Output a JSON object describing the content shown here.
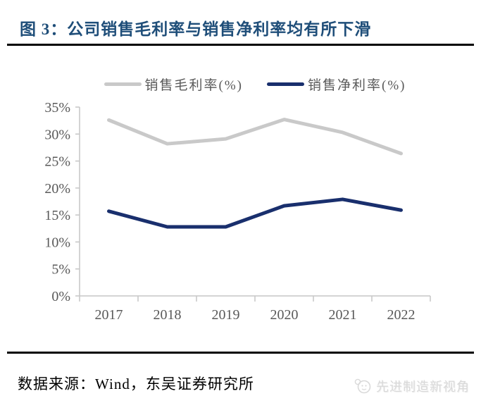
{
  "header": {
    "title": "图 3：公司销售毛利率与销售净利率均有所下滑",
    "title_color": "#1f4e79",
    "rule_color": "#000000"
  },
  "chart_data": {
    "type": "line",
    "categories": [
      "2017",
      "2018",
      "2019",
      "2020",
      "2021",
      "2022"
    ],
    "series": [
      {
        "name": "销售毛利率(%)",
        "color": "#c9c9c9",
        "values": [
          32.6,
          28.2,
          29.1,
          32.7,
          30.3,
          26.4
        ]
      },
      {
        "name": "销售净利率(%)",
        "color": "#192f6d",
        "values": [
          15.7,
          12.8,
          12.8,
          16.7,
          17.9,
          15.9
        ]
      }
    ],
    "title": "",
    "xlabel": "",
    "ylabel": "",
    "ylim": [
      0,
      35
    ],
    "ytick_step": 5,
    "ytick_labels": [
      "0%",
      "5%",
      "10%",
      "15%",
      "20%",
      "25%",
      "30%",
      "35%"
    ],
    "grid": false,
    "legend_position": "top",
    "axis_color": "#c6c6c6",
    "tick_label_color": "#595959"
  },
  "footer": {
    "source": "数据来源：Wind，东吴证券研究所",
    "watermark": "先进制造新视角",
    "watermark_color": "#d9d9d9"
  }
}
